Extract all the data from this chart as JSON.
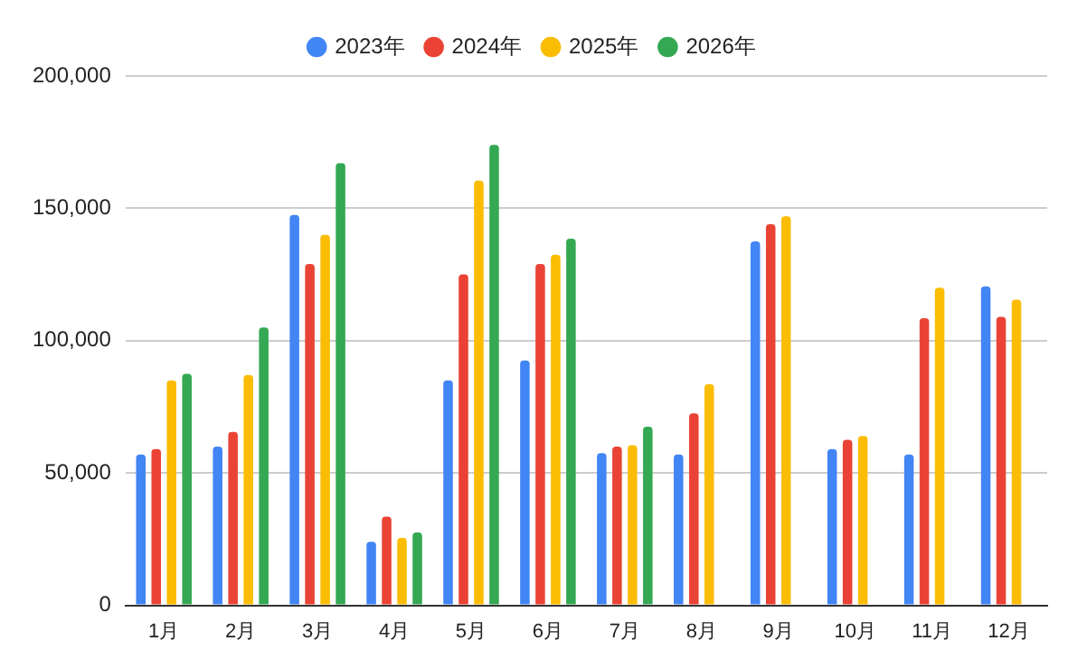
{
  "chart_data": {
    "type": "bar",
    "categories": [
      "1月",
      "2月",
      "3月",
      "4月",
      "5月",
      "6月",
      "7月",
      "8月",
      "9月",
      "10月",
      "11月",
      "12月"
    ],
    "series": [
      {
        "name": "2023年",
        "color": "#4285f4",
        "values": [
          57000,
          60000,
          147500,
          24000,
          85000,
          92500,
          57500,
          57000,
          137500,
          59000,
          57000,
          120500
        ]
      },
      {
        "name": "2024年",
        "color": "#ea4335",
        "values": [
          59000,
          65500,
          129000,
          33500,
          125000,
          129000,
          60000,
          72500,
          144000,
          62500,
          108500,
          109000
        ]
      },
      {
        "name": "2025年",
        "color": "#fbbc04",
        "values": [
          85000,
          87000,
          140000,
          25500,
          160500,
          132500,
          60500,
          83500,
          147000,
          64000,
          120000,
          115500
        ]
      },
      {
        "name": "2026年",
        "color": "#34a853",
        "values": [
          87500,
          105000,
          167000,
          27500,
          174000,
          138500,
          67500,
          null,
          null,
          null,
          null,
          null
        ]
      }
    ],
    "ylim": [
      0,
      200000
    ],
    "yticks": [
      0,
      {
        "value": 50000,
        "label": "50,000"
      },
      {
        "value": 100000,
        "label": "100,000"
      },
      {
        "value": 150000,
        "label": "150,000"
      },
      {
        "value": 200000,
        "label": "200,000"
      }
    ],
    "grid": "y",
    "legend": "top"
  }
}
